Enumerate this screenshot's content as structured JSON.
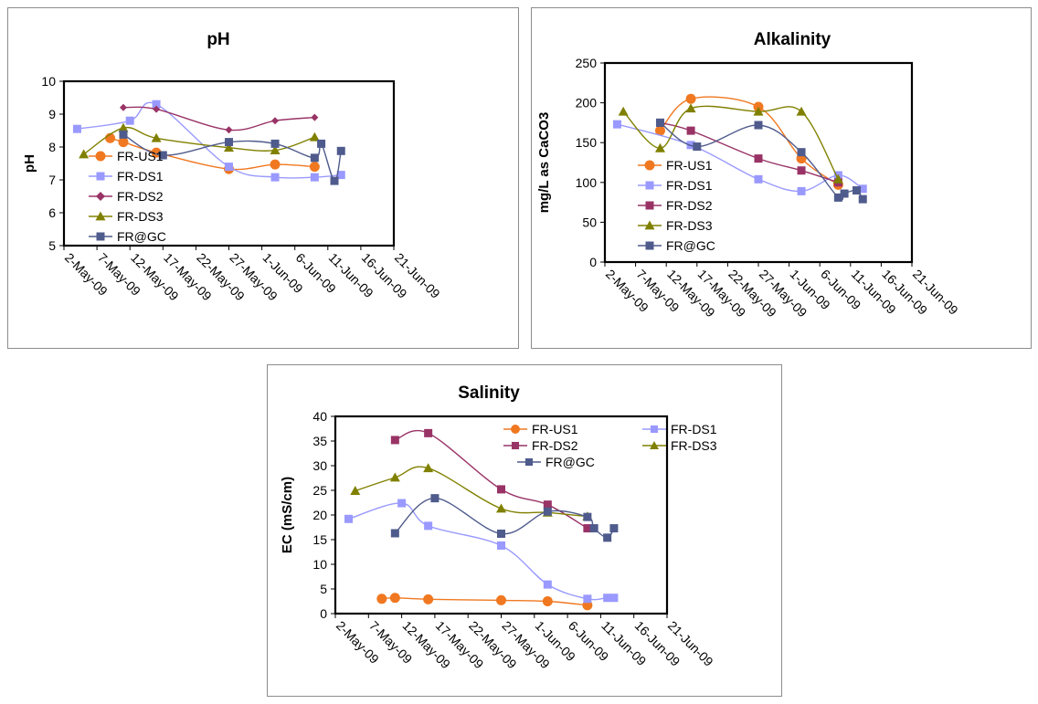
{
  "colors": {
    "FR-US1": "#f07820",
    "FR-DS1": "#9999ff",
    "FR-DS2": "#993366",
    "FR-DS3": "#808000",
    "FR@GC": "#4f5b8c"
  },
  "chart_data": [
    {
      "type": "line",
      "title": "pH",
      "xlabel": "",
      "ylabel": "pH",
      "xlim": [
        "2009-05-02",
        "2009-06-21"
      ],
      "ylim": [
        5,
        10
      ],
      "x_ticks": [
        "2-May-09",
        "7-May-09",
        "12-May-09",
        "17-May-09",
        "22-May-09",
        "27-May-09",
        "1-Jun-09",
        "6-Jun-09",
        "11-Jun-09",
        "16-Jun-09",
        "21-Jun-09"
      ],
      "y_ticks": [
        "5",
        "6",
        "7",
        "8",
        "9",
        "10"
      ],
      "legend_position": "left",
      "series": [
        {
          "name": "FR-US1",
          "marker": "circle",
          "points": [
            [
              "2009-05-09",
              8.27
            ],
            [
              "2009-05-11",
              8.15
            ],
            [
              "2009-05-16",
              7.83
            ],
            [
              "2009-05-27",
              7.33
            ],
            [
              "2009-06-03",
              7.47
            ],
            [
              "2009-06-09",
              7.4
            ]
          ]
        },
        {
          "name": "FR-DS1",
          "marker": "square",
          "points": [
            [
              "2009-05-04",
              8.55
            ],
            [
              "2009-05-12",
              8.8
            ],
            [
              "2009-05-16",
              9.3
            ],
            [
              "2009-05-27",
              7.4
            ],
            [
              "2009-06-03",
              7.08
            ],
            [
              "2009-06-09",
              7.08
            ],
            [
              "2009-06-13",
              7.15
            ]
          ]
        },
        {
          "name": "FR-DS2",
          "marker": "diamond",
          "points": [
            [
              "2009-05-11",
              9.2
            ],
            [
              "2009-05-16",
              9.15
            ],
            [
              "2009-05-27",
              8.52
            ],
            [
              "2009-06-03",
              8.8
            ],
            [
              "2009-06-09",
              8.9
            ]
          ]
        },
        {
          "name": "FR-DS3",
          "marker": "triangle",
          "points": [
            [
              "2009-05-05",
              7.78
            ],
            [
              "2009-05-11",
              8.58
            ],
            [
              "2009-05-16",
              8.27
            ],
            [
              "2009-05-27",
              7.98
            ],
            [
              "2009-06-03",
              7.9
            ],
            [
              "2009-06-09",
              8.3
            ]
          ]
        },
        {
          "name": "FR@GC",
          "marker": "square",
          "points": [
            [
              "2009-05-11",
              8.38
            ],
            [
              "2009-05-17",
              7.75
            ],
            [
              "2009-05-27",
              8.15
            ],
            [
              "2009-06-03",
              8.1
            ],
            [
              "2009-06-09",
              7.67
            ],
            [
              "2009-06-10",
              8.1
            ],
            [
              "2009-06-12",
              6.97
            ],
            [
              "2009-06-13",
              7.88
            ]
          ]
        }
      ]
    },
    {
      "type": "line",
      "title": "Alkalinity",
      "xlabel": "",
      "ylabel": "mg/L as CaCO3",
      "xlim": [
        "2009-05-02",
        "2009-06-21"
      ],
      "ylim": [
        0,
        250
      ],
      "x_ticks": [
        "2-May-09",
        "7-May-09",
        "12-May-09",
        "17-May-09",
        "22-May-09",
        "27-May-09",
        "1-Jun-09",
        "6-Jun-09",
        "11-Jun-09",
        "16-Jun-09",
        "21-Jun-09"
      ],
      "y_ticks": [
        "0",
        "50",
        "100",
        "150",
        "200",
        "250"
      ],
      "legend_position": "left",
      "series": [
        {
          "name": "FR-US1",
          "marker": "circle",
          "points": [
            [
              "2009-05-11",
              165
            ],
            [
              "2009-05-16",
              205
            ],
            [
              "2009-05-27",
              195
            ],
            [
              "2009-06-03",
              130
            ],
            [
              "2009-06-09",
              97
            ]
          ]
        },
        {
          "name": "FR-DS1",
          "marker": "square",
          "points": [
            [
              "2009-05-04",
              173
            ],
            [
              "2009-05-16",
              147
            ],
            [
              "2009-05-27",
              104
            ],
            [
              "2009-06-03",
              89
            ],
            [
              "2009-06-09",
              109
            ],
            [
              "2009-06-13",
              92
            ]
          ]
        },
        {
          "name": "FR-DS2",
          "marker": "square",
          "points": [
            [
              "2009-05-11",
              175
            ],
            [
              "2009-05-16",
              165
            ],
            [
              "2009-05-27",
              130
            ],
            [
              "2009-06-03",
              115
            ],
            [
              "2009-06-09",
              100
            ]
          ]
        },
        {
          "name": "FR-DS3",
          "marker": "triangle",
          "points": [
            [
              "2009-05-05",
              189
            ],
            [
              "2009-05-11",
              143
            ],
            [
              "2009-05-16",
              193
            ],
            [
              "2009-05-27",
              189
            ],
            [
              "2009-06-03",
              189
            ],
            [
              "2009-06-09",
              104
            ]
          ]
        },
        {
          "name": "FR@GC",
          "marker": "square",
          "points": [
            [
              "2009-05-11",
              175
            ],
            [
              "2009-05-17",
              145
            ],
            [
              "2009-05-27",
              172
            ],
            [
              "2009-06-03",
              138
            ],
            [
              "2009-06-09",
              81
            ],
            [
              "2009-06-10",
              86
            ],
            [
              "2009-06-12",
              90
            ],
            [
              "2009-06-13",
              79
            ]
          ]
        }
      ]
    },
    {
      "type": "line",
      "title": "Salinity",
      "xlabel": "",
      "ylabel": "EC (mS/cm)",
      "xlim": [
        "2009-05-02",
        "2009-06-21"
      ],
      "ylim": [
        0,
        40
      ],
      "x_ticks": [
        "2-May-09",
        "7-May-09",
        "12-May-09",
        "17-May-09",
        "22-May-09",
        "27-May-09",
        "1-Jun-09",
        "6-Jun-09",
        "11-Jun-09",
        "16-Jun-09",
        "21-Jun-09"
      ],
      "y_ticks": [
        "0",
        "5",
        "10",
        "15",
        "20",
        "25",
        "30",
        "35",
        "40"
      ],
      "legend_position": "top-right",
      "series": [
        {
          "name": "FR-US1",
          "marker": "circle",
          "points": [
            [
              "2009-05-09",
              3.0
            ],
            [
              "2009-05-11",
              3.2
            ],
            [
              "2009-05-16",
              2.9
            ],
            [
              "2009-05-27",
              2.7
            ],
            [
              "2009-06-03",
              2.5
            ],
            [
              "2009-06-09",
              1.7
            ]
          ]
        },
        {
          "name": "FR-DS1",
          "marker": "square",
          "points": [
            [
              "2009-05-04",
              19.2
            ],
            [
              "2009-05-12",
              22.4
            ],
            [
              "2009-05-16",
              17.8
            ],
            [
              "2009-05-27",
              13.8
            ],
            [
              "2009-06-03",
              5.9
            ],
            [
              "2009-06-09",
              3.0
            ],
            [
              "2009-06-12",
              3.2
            ],
            [
              "2009-06-13",
              3.2
            ]
          ]
        },
        {
          "name": "FR-DS2",
          "marker": "square",
          "points": [
            [
              "2009-05-11",
              35.2
            ],
            [
              "2009-05-16",
              36.6
            ],
            [
              "2009-05-27",
              25.2
            ],
            [
              "2009-06-03",
              22.1
            ],
            [
              "2009-06-09",
              17.3
            ]
          ]
        },
        {
          "name": "FR-DS3",
          "marker": "triangle",
          "points": [
            [
              "2009-05-05",
              24.9
            ],
            [
              "2009-05-11",
              27.6
            ],
            [
              "2009-05-16",
              29.5
            ],
            [
              "2009-05-27",
              21.3
            ],
            [
              "2009-06-03",
              20.5
            ],
            [
              "2009-06-09",
              19.7
            ]
          ]
        },
        {
          "name": "FR@GC",
          "marker": "square",
          "points": [
            [
              "2009-05-11",
              16.3
            ],
            [
              "2009-05-17",
              23.4
            ],
            [
              "2009-05-27",
              16.2
            ],
            [
              "2009-06-03",
              20.7
            ],
            [
              "2009-06-09",
              19.6
            ],
            [
              "2009-06-10",
              17.3
            ],
            [
              "2009-06-12",
              15.4
            ],
            [
              "2009-06-13",
              17.3
            ]
          ]
        }
      ]
    }
  ]
}
